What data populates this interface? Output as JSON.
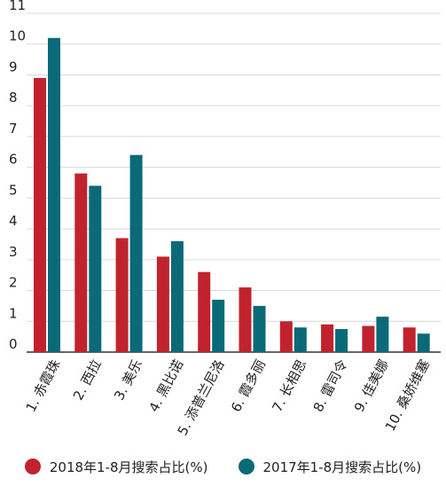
{
  "chart_data": {
    "type": "bar",
    "title": "",
    "xlabel": "",
    "ylabel": "",
    "ylim": [
      0,
      11
    ],
    "yticks": [
      0,
      1,
      2,
      3,
      4,
      5,
      6,
      7,
      8,
      9,
      10,
      11
    ],
    "grid": true,
    "legend_position": "bottom",
    "categories": [
      "1. 赤霞珠",
      "2. 西拉",
      "3. 美乐",
      "4. 黑比诺",
      "5. 添普兰尼洛",
      "6. 霞多丽",
      "7. 长相思",
      "8. 雷司令",
      "9. 佳美娜",
      "10. 桑娇维塞"
    ],
    "series": [
      {
        "name": "2018年1-8月搜索占比(%)",
        "color": "#c0222e",
        "values": [
          8.9,
          5.8,
          3.7,
          3.1,
          2.6,
          2.1,
          1.0,
          0.9,
          0.85,
          0.8
        ]
      },
      {
        "name": "2017年1-8月搜索占比(%)",
        "color": "#0b6a78",
        "values": [
          10.2,
          5.4,
          6.4,
          3.6,
          1.7,
          1.5,
          0.8,
          0.75,
          1.15,
          0.6
        ]
      }
    ]
  }
}
